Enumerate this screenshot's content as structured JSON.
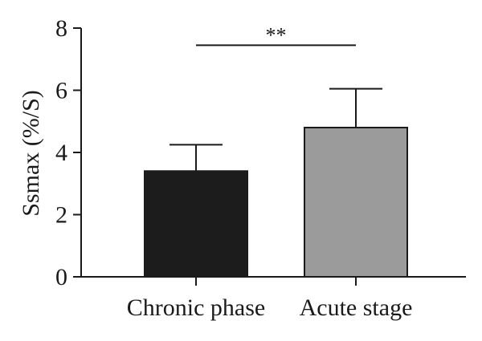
{
  "chart_data": {
    "type": "bar",
    "title": "",
    "xlabel": "",
    "ylabel": "Ssmax (%/S)",
    "ylim": [
      0,
      8
    ],
    "yticks": [
      "0",
      "2",
      "4",
      "6",
      "8"
    ],
    "categories": [
      "Chronic phase",
      "Acute stage"
    ],
    "values": [
      3.4,
      4.8
    ],
    "error_upper": [
      4.25,
      6.05
    ],
    "bar_colors": [
      "#1c1c1c",
      "#9b9b9b"
    ],
    "grid": false,
    "significance": {
      "between": [
        0,
        1
      ],
      "level": 7.45,
      "label": "**"
    }
  }
}
